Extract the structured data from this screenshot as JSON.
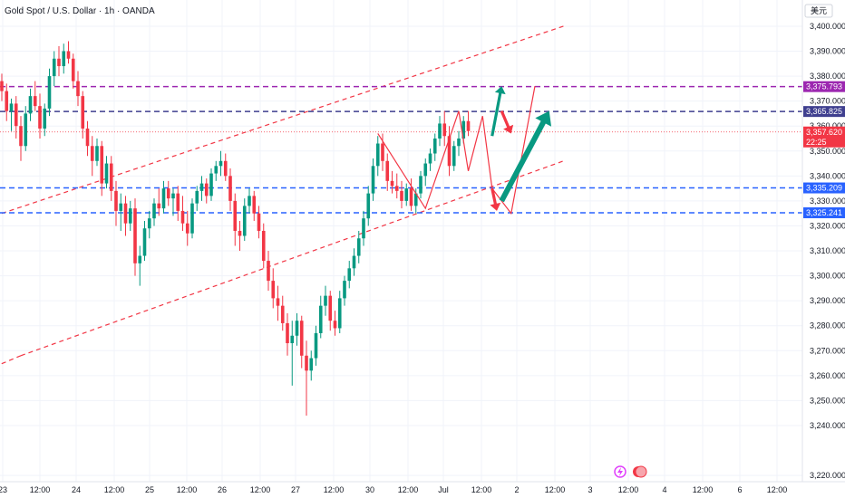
{
  "header": {
    "symbol_title": "Gold Spot / U.S. Dollar · 1h · OANDA",
    "currency_button": "美元"
  },
  "chart_data": {
    "type": "candlestick",
    "title": "Gold Spot / U.S. Dollar · 1h · OANDA",
    "xlabel": "",
    "ylabel": "",
    "ylim": [
      3217.5,
      3410.5
    ],
    "y_ticks": [
      "3,400.000",
      "3,390.000",
      "3,380.000",
      "3,370.000",
      "3,360.000",
      "3,350.000",
      "3,340.000",
      "3,330.000",
      "3,320.000",
      "3,310.000",
      "3,300.000",
      "3,290.000",
      "3,280.000",
      "3,270.000",
      "3,260.000",
      "3,250.000",
      "3,240.000",
      "3,220.000"
    ],
    "x_ticks": [
      "23",
      "12:00",
      "24",
      "12:00",
      "25",
      "12:00",
      "26",
      "12:00",
      "27",
      "12:00",
      "30",
      "12:00",
      "Jul",
      "12:00",
      "2",
      "12:00",
      "3",
      "12:00",
      "4",
      "12:00",
      "6",
      "12:00"
    ],
    "horizontal_levels": [
      {
        "value": 3375.793,
        "label": "3,375.793",
        "color": "#9c27b0"
      },
      {
        "value": 3365.825,
        "label": "3,365.825",
        "color": "#3f3f8f"
      },
      {
        "value": 3335.209,
        "label": "3,335.209",
        "color": "#2962ff"
      },
      {
        "value": 3325.241,
        "label": "3,325.241",
        "color": "#2962ff"
      }
    ],
    "current_price": {
      "value": 3357.62,
      "label": "3,357.620",
      "countdown": "22:25",
      "color": "#f23645"
    },
    "candles": [
      [
        3378,
        3381,
        3370,
        3374
      ],
      [
        3374,
        3377,
        3362,
        3366
      ],
      [
        3366,
        3371,
        3358,
        3369
      ],
      [
        3369,
        3372,
        3355,
        3360
      ],
      [
        3360,
        3364,
        3346,
        3352
      ],
      [
        3352,
        3368,
        3350,
        3365
      ],
      [
        3365,
        3375,
        3362,
        3372
      ],
      [
        3372,
        3378,
        3366,
        3368
      ],
      [
        3368,
        3373,
        3355,
        3359
      ],
      [
        3359,
        3369,
        3356,
        3367
      ],
      [
        3367,
        3383,
        3364,
        3380
      ],
      [
        3380,
        3390,
        3376,
        3387
      ],
      [
        3387,
        3392,
        3380,
        3384
      ],
      [
        3384,
        3393,
        3381,
        3390
      ],
      [
        3390,
        3394,
        3385,
        3387
      ],
      [
        3387,
        3389,
        3375,
        3378
      ],
      [
        3378,
        3382,
        3368,
        3372
      ],
      [
        3372,
        3374,
        3355,
        3359
      ],
      [
        3359,
        3362,
        3348,
        3352
      ],
      [
        3352,
        3356,
        3340,
        3346
      ],
      [
        3346,
        3355,
        3344,
        3352
      ],
      [
        3352,
        3354,
        3332,
        3337
      ],
      [
        3337,
        3348,
        3335,
        3345
      ],
      [
        3345,
        3348,
        3330,
        3334
      ],
      [
        3334,
        3338,
        3320,
        3326
      ],
      [
        3326,
        3333,
        3318,
        3329
      ],
      [
        3329,
        3332,
        3316,
        3321
      ],
      [
        3321,
        3330,
        3318,
        3327
      ],
      [
        3327,
        3331,
        3300,
        3305
      ],
      [
        3305,
        3312,
        3296,
        3308
      ],
      [
        3308,
        3322,
        3306,
        3319
      ],
      [
        3319,
        3326,
        3315,
        3323
      ],
      [
        3323,
        3331,
        3320,
        3329
      ],
      [
        3329,
        3335,
        3324,
        3327
      ],
      [
        3327,
        3338,
        3325,
        3335
      ],
      [
        3335,
        3338,
        3328,
        3331
      ],
      [
        3331,
        3335,
        3324,
        3333
      ],
      [
        3333,
        3336,
        3322,
        3326
      ],
      [
        3326,
        3332,
        3318,
        3321
      ],
      [
        3321,
        3326,
        3312,
        3317
      ],
      [
        3317,
        3331,
        3315,
        3329
      ],
      [
        3329,
        3336,
        3326,
        3334
      ],
      [
        3334,
        3340,
        3330,
        3337
      ],
      [
        3337,
        3339,
        3329,
        3332
      ],
      [
        3332,
        3343,
        3330,
        3341
      ],
      [
        3341,
        3346,
        3338,
        3344
      ],
      [
        3344,
        3350,
        3340,
        3346
      ],
      [
        3346,
        3349,
        3338,
        3340
      ],
      [
        3340,
        3343,
        3326,
        3330
      ],
      [
        3330,
        3333,
        3312,
        3318
      ],
      [
        3318,
        3322,
        3310,
        3316
      ],
      [
        3316,
        3331,
        3314,
        3328
      ],
      [
        3328,
        3335,
        3325,
        3332
      ],
      [
        3332,
        3334,
        3322,
        3325
      ],
      [
        3325,
        3328,
        3315,
        3318
      ],
      [
        3318,
        3321,
        3303,
        3306
      ],
      [
        3306,
        3310,
        3294,
        3298
      ],
      [
        3298,
        3303,
        3287,
        3291
      ],
      [
        3291,
        3296,
        3282,
        3288
      ],
      [
        3288,
        3292,
        3278,
        3281
      ],
      [
        3281,
        3285,
        3268,
        3273
      ],
      [
        3273,
        3282,
        3256,
        3276
      ],
      [
        3276,
        3285,
        3272,
        3282
      ],
      [
        3282,
        3284,
        3263,
        3268
      ],
      [
        3268,
        3274,
        3244,
        3262
      ],
      [
        3262,
        3270,
        3258,
        3267
      ],
      [
        3267,
        3280,
        3264,
        3277
      ],
      [
        3277,
        3292,
        3275,
        3288
      ],
      [
        3288,
        3296,
        3284,
        3292
      ],
      [
        3292,
        3294,
        3278,
        3282
      ],
      [
        3282,
        3286,
        3276,
        3279
      ],
      [
        3279,
        3294,
        3277,
        3291
      ],
      [
        3291,
        3300,
        3288,
        3298
      ],
      [
        3298,
        3306,
        3295,
        3303
      ],
      [
        3303,
        3311,
        3300,
        3308
      ],
      [
        3308,
        3318,
        3305,
        3315
      ],
      [
        3315,
        3326,
        3312,
        3323
      ],
      [
        3323,
        3336,
        3320,
        3333
      ],
      [
        3333,
        3347,
        3330,
        3344
      ],
      [
        3344,
        3356,
        3340,
        3353
      ],
      [
        3353,
        3357,
        3342,
        3346
      ],
      [
        3346,
        3349,
        3334,
        3338
      ],
      [
        3338,
        3342,
        3333,
        3336
      ],
      [
        3336,
        3341,
        3331,
        3334
      ],
      [
        3334,
        3338,
        3327,
        3330
      ],
      [
        3330,
        3337,
        3328,
        3335
      ],
      [
        3335,
        3339,
        3326,
        3328
      ],
      [
        3328,
        3335,
        3325,
        3333
      ],
      [
        3333,
        3342,
        3331,
        3340
      ],
      [
        3340,
        3347,
        3336,
        3345
      ],
      [
        3345,
        3351,
        3342,
        3349
      ],
      [
        3349,
        3357,
        3346,
        3355
      ],
      [
        3355,
        3364,
        3352,
        3361
      ],
      [
        3361,
        3366,
        3352,
        3356
      ],
      [
        3356,
        3360,
        3340,
        3344
      ],
      [
        3344,
        3354,
        3342,
        3352
      ],
      [
        3352,
        3358,
        3348,
        3355
      ],
      [
        3355,
        3364,
        3353,
        3362
      ],
      [
        3362,
        3366,
        3356,
        3358
      ]
    ],
    "trend_lines": [
      {
        "from": [
          0,
          3325
        ],
        "to": [
          118,
          3400
        ]
      },
      {
        "from": [
          4,
          3268
        ],
        "to": [
          118,
          3346
        ]
      },
      {
        "from": [
          4,
          3268
        ],
        "to": [
          -6,
          3260
        ]
      }
    ],
    "scenario_paths": [
      {
        "points": [
          [
            79,
            3357
          ],
          [
            89,
            3327
          ],
          [
            96,
            3366
          ],
          [
            98,
            3342
          ],
          [
            101,
            3364
          ],
          [
            103,
            3335
          ],
          [
            107,
            3325
          ],
          [
            112,
            3376
          ]
        ]
      }
    ],
    "arrows": [
      {
        "from": [
          103,
          3356
        ],
        "to": [
          105,
          3376
        ],
        "color": "#089981",
        "size": "small"
      },
      {
        "from": [
          105,
          3366
        ],
        "to": [
          107,
          3357
        ],
        "color": "#f23645",
        "size": "small"
      },
      {
        "from": [
          103,
          3335
        ],
        "to": [
          104,
          3326
        ],
        "color": "#f23645",
        "size": "small"
      },
      {
        "from": [
          105,
          3330
        ],
        "to": [
          115,
          3366
        ],
        "color": "#089981",
        "size": "large"
      }
    ],
    "legend": "none",
    "grid": true
  }
}
